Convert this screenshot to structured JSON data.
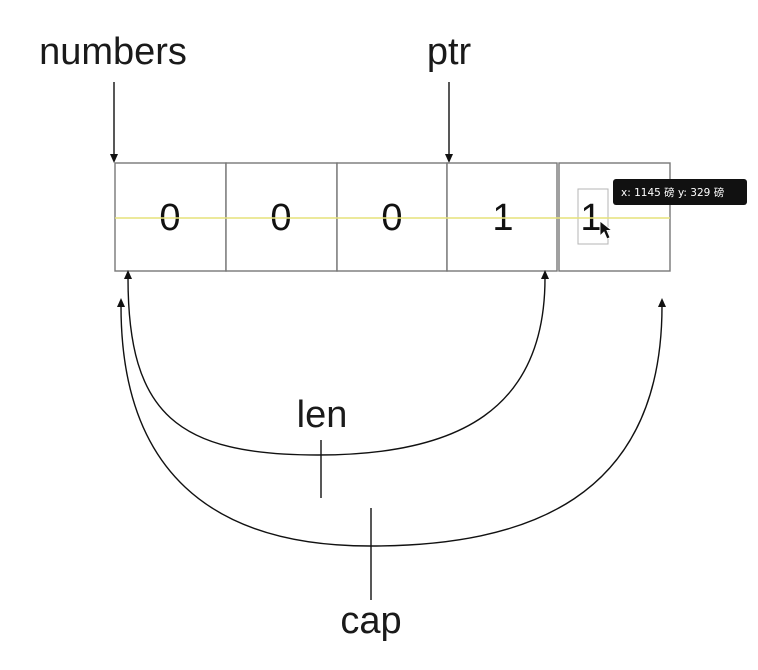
{
  "labels": {
    "numbers": "numbers",
    "ptr": "ptr",
    "len": "len",
    "cap": "cap"
  },
  "cells": [
    "0",
    "0",
    "0",
    "1",
    "1"
  ],
  "tooltip": {
    "text": "x: 1145 磅  y: 329 磅"
  },
  "colors": {
    "guide_line": "#e6e27a",
    "cell_border": "#777777",
    "tooltip_bg": "#111111"
  }
}
